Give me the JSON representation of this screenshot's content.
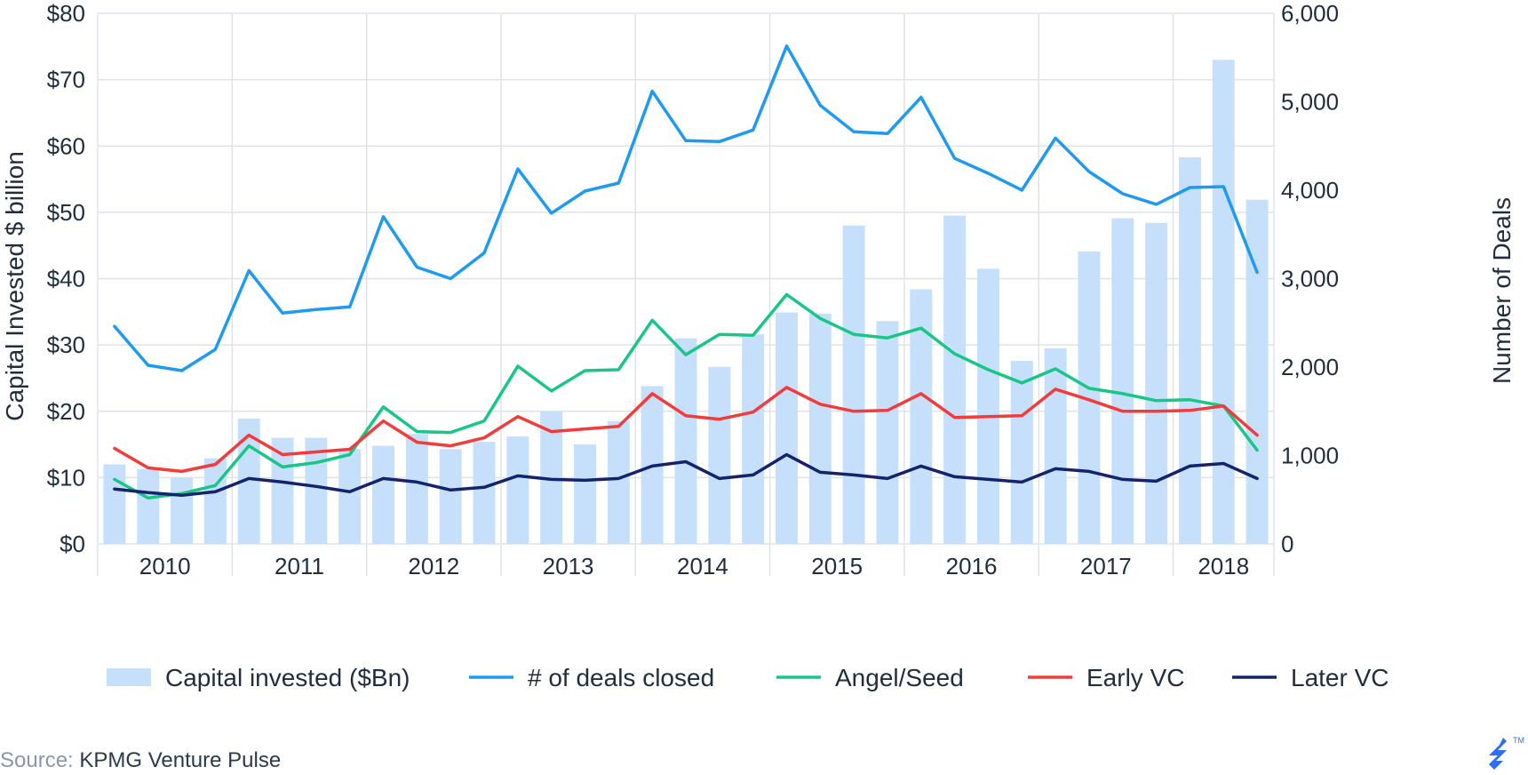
{
  "chart_data": {
    "type": "bar+line",
    "y_left": {
      "label": "Capital Invested $ billion",
      "ticks": [
        "$0",
        "$10",
        "$20",
        "$30",
        "$40",
        "$50",
        "$60",
        "$70",
        "$80"
      ],
      "range": [
        0,
        80
      ]
    },
    "y_right": {
      "label": "Number of Deals",
      "ticks": [
        "0",
        "1,000",
        "2,000",
        "3,000",
        "4,000",
        "5,000",
        "6,000"
      ],
      "range": [
        0,
        6000
      ]
    },
    "years": [
      "2010",
      "2011",
      "2012",
      "2013",
      "2014",
      "2015",
      "2016",
      "2017",
      "2018"
    ],
    "quarters_per_year": 4,
    "grid": true,
    "legend_position": "bottom",
    "series": [
      {
        "name": "Capital invested ($Bn)",
        "type": "bar",
        "axis": "left",
        "color": "#c6e0fb",
        "values": [
          12.0,
          11.3,
          10.0,
          12.9,
          18.9,
          16.0,
          16.0,
          14.3,
          14.8,
          16.6,
          14.3,
          15.4,
          16.2,
          20.0,
          15.0,
          18.5,
          23.8,
          31.0,
          26.7,
          31.6,
          34.9,
          34.7,
          48.0,
          33.6,
          38.4,
          49.5,
          41.5,
          27.6,
          29.5,
          44.1,
          49.1,
          48.4,
          58.3,
          73.0,
          51.9
        ]
      },
      {
        "name": "# of deals closed",
        "type": "line",
        "axis": "right",
        "color": "#1e9bf0",
        "values": [
          2460,
          2020,
          1960,
          2200,
          3090,
          2610,
          2650,
          2680,
          3700,
          3130,
          3000,
          3290,
          4240,
          3740,
          3990,
          4080,
          5120,
          4560,
          4550,
          4680,
          5630,
          4960,
          4660,
          4640,
          5050,
          4360,
          4190,
          4000,
          4590,
          4210,
          3960,
          3840,
          4030,
          4040,
          3070
        ]
      },
      {
        "name": "Angel/Seed",
        "type": "line",
        "axis": "right",
        "color": "#18c685",
        "values": [
          730,
          520,
          570,
          660,
          1110,
          870,
          920,
          1010,
          1550,
          1270,
          1260,
          1390,
          2010,
          1730,
          1960,
          1970,
          2530,
          2140,
          2370,
          2360,
          2820,
          2550,
          2370,
          2330,
          2440,
          2150,
          1970,
          1820,
          1980,
          1760,
          1700,
          1620,
          1630,
          1560,
          1060
        ]
      },
      {
        "name": "Early VC",
        "type": "line",
        "axis": "right",
        "color": "#f23b3b",
        "values": [
          1080,
          860,
          820,
          900,
          1230,
          1010,
          1040,
          1070,
          1390,
          1150,
          1110,
          1200,
          1440,
          1270,
          1300,
          1330,
          1700,
          1450,
          1410,
          1490,
          1770,
          1580,
          1500,
          1510,
          1700,
          1430,
          1440,
          1450,
          1750,
          1630,
          1500,
          1500,
          1510,
          1560,
          1230
        ]
      },
      {
        "name": "Later VC",
        "type": "line",
        "axis": "right",
        "color": "#14236b",
        "values": [
          620,
          580,
          550,
          590,
          740,
          700,
          650,
          590,
          740,
          700,
          610,
          640,
          770,
          730,
          720,
          740,
          880,
          930,
          740,
          780,
          1010,
          810,
          780,
          740,
          880,
          760,
          730,
          700,
          850,
          820,
          730,
          710,
          880,
          910,
          740
        ]
      }
    ]
  },
  "source": {
    "label": "Source:",
    "value": "KPMG Venture Pulse"
  },
  "logo": {
    "icon": "toptal-logo-icon",
    "mark": "TM",
    "color": "#2f6df6"
  }
}
